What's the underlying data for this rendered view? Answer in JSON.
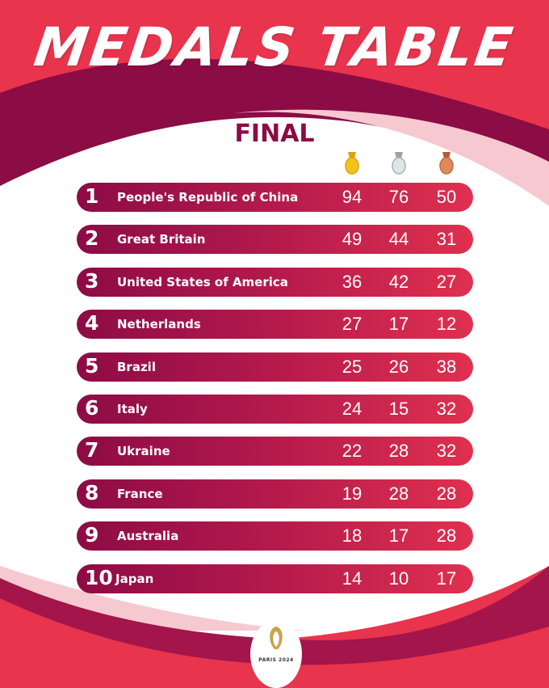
{
  "header": {
    "title": "MEDALS TABLE",
    "subtitle": "FINAL"
  },
  "colors": {
    "red": "#e8344c",
    "magenta": "#8c0c45",
    "gold": "#f2c318",
    "silver": "#c5ccd1",
    "bronze": "#d9794c"
  },
  "medal_icons": [
    "gold-medal-icon",
    "silver-medal-icon",
    "bronze-medal-icon"
  ],
  "rows": [
    {
      "rank": "1",
      "country": "People's Republic of China",
      "gold": "94",
      "silver": "76",
      "bronze": "50"
    },
    {
      "rank": "2",
      "country": "Great Britain",
      "gold": "49",
      "silver": "44",
      "bronze": "31"
    },
    {
      "rank": "3",
      "country": "United States of America",
      "gold": "36",
      "silver": "42",
      "bronze": "27"
    },
    {
      "rank": "4",
      "country": "Netherlands",
      "gold": "27",
      "silver": "17",
      "bronze": "12"
    },
    {
      "rank": "5",
      "country": "Brazil",
      "gold": "25",
      "silver": "26",
      "bronze": "38"
    },
    {
      "rank": "6",
      "country": "Italy",
      "gold": "24",
      "silver": "15",
      "bronze": "32"
    },
    {
      "rank": "7",
      "country": "Ukraine",
      "gold": "22",
      "silver": "28",
      "bronze": "32"
    },
    {
      "rank": "8",
      "country": "France",
      "gold": "19",
      "silver": "28",
      "bronze": "28"
    },
    {
      "rank": "9",
      "country": "Australia",
      "gold": "18",
      "silver": "17",
      "bronze": "28"
    },
    {
      "rank": "10",
      "country": "Japan",
      "gold": "14",
      "silver": "10",
      "bronze": "17"
    }
  ],
  "footer": {
    "logo_text": "PARIS 2024"
  }
}
